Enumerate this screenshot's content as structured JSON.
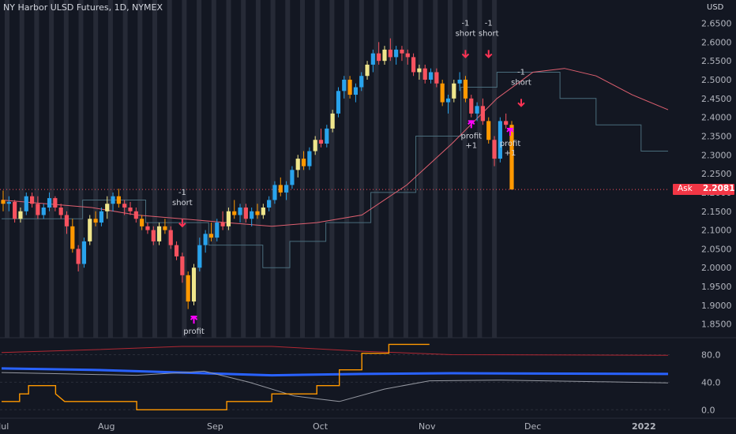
{
  "header": {
    "title": "NY Harbor ULSD Futures, 1D, NYMEX",
    "currency": "USD"
  },
  "ask": {
    "label": "Ask",
    "value": "2.2081"
  },
  "colors": {
    "background": "#131722",
    "bull": "#29a3ec",
    "bull_alt": "#f0e68c",
    "bear": "#f7525f",
    "bear_alt": "#ff9800",
    "ma": "#e06070",
    "signal_short": "#ff3355",
    "signal_profit": "#ff00ff",
    "session_band": "#2a2e39"
  },
  "chart_data": [
    {
      "type": "candlestick",
      "title": "NY Harbor ULSD Futures, 1D, NYMEX",
      "y_axis": {
        "ticks": [
          "2.6500",
          "2.6000",
          "2.5500",
          "2.5000",
          "2.4500",
          "2.4000",
          "2.3500",
          "2.3000",
          "2.2500",
          "2.2000",
          "2.1500",
          "2.1000",
          "2.0500",
          "2.0000",
          "1.9500",
          "1.9000",
          "1.8500"
        ],
        "range": [
          1.82,
          2.67
        ]
      },
      "x_axis": {
        "ticks": [
          "Jul",
          "Aug",
          "Sep",
          "Oct",
          "Nov",
          "Dec",
          "2022"
        ]
      },
      "series": [
        {
          "type": "line",
          "description": "moving average (pink)",
          "values": [
            [
              0,
              2.18
            ],
            [
              10,
              2.17
            ],
            [
              20,
              2.16
            ],
            [
              30,
              2.14
            ],
            [
              40,
              2.13
            ],
            [
              50,
              2.12
            ],
            [
              60,
              2.11
            ],
            [
              70,
              2.12
            ],
            [
              80,
              2.14
            ],
            [
              90,
              2.22
            ],
            [
              100,
              2.33
            ],
            [
              110,
              2.45
            ],
            [
              118,
              2.52
            ],
            [
              125,
              2.53
            ],
            [
              132,
              2.51
            ],
            [
              140,
              2.46
            ],
            [
              148,
              2.42
            ]
          ]
        },
        {
          "type": "line",
          "description": "trailing stop line (thin)",
          "values": [
            [
              0,
              2.13
            ],
            [
              18,
              2.13
            ],
            [
              18,
              2.18
            ],
            [
              32,
              2.18
            ],
            [
              32,
              2.12
            ],
            [
              46,
              2.12
            ],
            [
              46,
              2.06
            ],
            [
              58,
              2.06
            ],
            [
              58,
              2.0
            ],
            [
              64,
              2.0
            ],
            [
              64,
              2.07
            ],
            [
              72,
              2.07
            ],
            [
              72,
              2.12
            ],
            [
              82,
              2.12
            ],
            [
              82,
              2.2
            ],
            [
              92,
              2.2
            ],
            [
              92,
              2.35
            ],
            [
              102,
              2.35
            ],
            [
              102,
              2.48
            ],
            [
              110,
              2.48
            ],
            [
              110,
              2.52
            ],
            [
              124,
              2.52
            ],
            [
              124,
              2.45
            ],
            [
              132,
              2.45
            ],
            [
              132,
              2.38
            ],
            [
              142,
              2.38
            ],
            [
              142,
              2.31
            ],
            [
              148,
              2.31
            ]
          ]
        }
      ],
      "ohlc": [
        [
          0,
          2.18,
          2.205,
          2.15,
          2.17
        ],
        [
          1,
          2.17,
          2.19,
          2.15,
          2.175
        ],
        [
          2,
          2.175,
          2.18,
          2.12,
          2.13
        ],
        [
          3,
          2.13,
          2.16,
          2.12,
          2.15
        ],
        [
          4,
          2.15,
          2.2,
          2.14,
          2.19
        ],
        [
          5,
          2.19,
          2.2,
          2.16,
          2.17
        ],
        [
          6,
          2.17,
          2.19,
          2.13,
          2.14
        ],
        [
          7,
          2.14,
          2.17,
          2.13,
          2.16
        ],
        [
          8,
          2.16,
          2.2,
          2.15,
          2.185
        ],
        [
          9,
          2.185,
          2.19,
          2.15,
          2.16
        ],
        [
          10,
          2.16,
          2.17,
          2.13,
          2.14
        ],
        [
          11,
          2.14,
          2.15,
          2.09,
          2.11
        ],
        [
          12,
          2.11,
          2.13,
          2.04,
          2.05
        ],
        [
          13,
          2.05,
          2.06,
          1.99,
          2.01
        ],
        [
          14,
          2.01,
          2.08,
          2.0,
          2.07
        ],
        [
          15,
          2.07,
          2.14,
          2.06,
          2.13
        ],
        [
          16,
          2.13,
          2.15,
          2.11,
          2.12
        ],
        [
          17,
          2.12,
          2.16,
          2.11,
          2.15
        ],
        [
          18,
          2.15,
          2.19,
          2.13,
          2.17
        ],
        [
          19,
          2.17,
          2.2,
          2.15,
          2.19
        ],
        [
          20,
          2.19,
          2.21,
          2.16,
          2.17
        ],
        [
          21,
          2.17,
          2.18,
          2.14,
          2.16
        ],
        [
          22,
          2.16,
          2.175,
          2.14,
          2.15
        ],
        [
          23,
          2.15,
          2.16,
          2.12,
          2.13
        ],
        [
          24,
          2.13,
          2.14,
          2.1,
          2.11
        ],
        [
          25,
          2.11,
          2.12,
          2.09,
          2.1
        ],
        [
          26,
          2.1,
          2.11,
          2.06,
          2.07
        ],
        [
          27,
          2.07,
          2.12,
          2.06,
          2.11
        ],
        [
          28,
          2.11,
          2.13,
          2.09,
          2.1
        ],
        [
          29,
          2.1,
          2.11,
          2.05,
          2.06
        ],
        [
          30,
          2.06,
          2.07,
          2.02,
          2.03
        ],
        [
          31,
          2.03,
          2.04,
          1.96,
          1.98
        ],
        [
          32,
          1.98,
          1.99,
          1.89,
          1.91
        ],
        [
          33,
          1.91,
          2.01,
          1.9,
          2.0
        ],
        [
          34,
          2.0,
          2.08,
          1.99,
          2.06
        ],
        [
          35,
          2.06,
          2.1,
          2.04,
          2.09
        ],
        [
          36,
          2.09,
          2.12,
          2.07,
          2.08
        ],
        [
          37,
          2.08,
          2.13,
          2.07,
          2.12
        ],
        [
          38,
          2.12,
          2.15,
          2.1,
          2.11
        ],
        [
          39,
          2.11,
          2.16,
          2.1,
          2.15
        ],
        [
          40,
          2.15,
          2.18,
          2.13,
          2.14
        ],
        [
          41,
          2.14,
          2.17,
          2.12,
          2.16
        ],
        [
          42,
          2.16,
          2.17,
          2.12,
          2.13
        ],
        [
          43,
          2.13,
          2.16,
          2.11,
          2.15
        ],
        [
          44,
          2.15,
          2.17,
          2.13,
          2.14
        ],
        [
          45,
          2.14,
          2.17,
          2.13,
          2.16
        ],
        [
          46,
          2.16,
          2.19,
          2.15,
          2.18
        ],
        [
          47,
          2.18,
          2.23,
          2.17,
          2.22
        ],
        [
          48,
          2.22,
          2.24,
          2.19,
          2.2
        ],
        [
          49,
          2.2,
          2.23,
          2.18,
          2.22
        ],
        [
          50,
          2.22,
          2.27,
          2.21,
          2.26
        ],
        [
          51,
          2.26,
          2.3,
          2.24,
          2.29
        ],
        [
          52,
          2.29,
          2.31,
          2.26,
          2.27
        ],
        [
          53,
          2.27,
          2.32,
          2.26,
          2.31
        ],
        [
          54,
          2.31,
          2.35,
          2.3,
          2.34
        ],
        [
          55,
          2.34,
          2.37,
          2.32,
          2.33
        ],
        [
          56,
          2.33,
          2.38,
          2.32,
          2.37
        ],
        [
          57,
          2.37,
          2.42,
          2.36,
          2.41
        ],
        [
          58,
          2.41,
          2.48,
          2.4,
          2.47
        ],
        [
          59,
          2.47,
          2.51,
          2.45,
          2.5
        ],
        [
          60,
          2.5,
          2.51,
          2.45,
          2.46
        ],
        [
          61,
          2.46,
          2.49,
          2.44,
          2.48
        ],
        [
          62,
          2.48,
          2.52,
          2.47,
          2.51
        ],
        [
          63,
          2.51,
          2.55,
          2.5,
          2.54
        ],
        [
          64,
          2.54,
          2.58,
          2.52,
          2.57
        ],
        [
          65,
          2.57,
          2.6,
          2.54,
          2.55
        ],
        [
          66,
          2.55,
          2.59,
          2.54,
          2.58
        ],
        [
          67,
          2.58,
          2.61,
          2.55,
          2.56
        ],
        [
          68,
          2.56,
          2.59,
          2.54,
          2.58
        ],
        [
          69,
          2.58,
          2.59,
          2.55,
          2.57
        ],
        [
          70,
          2.57,
          2.58,
          2.54,
          2.56
        ],
        [
          71,
          2.56,
          2.57,
          2.51,
          2.52
        ],
        [
          72,
          2.52,
          2.54,
          2.5,
          2.53
        ],
        [
          73,
          2.53,
          2.54,
          2.49,
          2.5
        ],
        [
          74,
          2.5,
          2.53,
          2.49,
          2.52
        ],
        [
          75,
          2.52,
          2.53,
          2.48,
          2.49
        ],
        [
          76,
          2.49,
          2.5,
          2.43,
          2.44
        ],
        [
          77,
          2.44,
          2.46,
          2.41,
          2.45
        ],
        [
          78,
          2.45,
          2.5,
          2.44,
          2.49
        ],
        [
          79,
          2.49,
          2.52,
          2.47,
          2.5
        ],
        [
          80,
          2.5,
          2.51,
          2.44,
          2.45
        ],
        [
          81,
          2.45,
          2.46,
          2.4,
          2.41
        ],
        [
          82,
          2.41,
          2.44,
          2.39,
          2.43
        ],
        [
          83,
          2.43,
          2.45,
          2.38,
          2.39
        ],
        [
          84,
          2.39,
          2.4,
          2.33,
          2.34
        ],
        [
          85,
          2.34,
          2.35,
          2.27,
          2.29
        ],
        [
          86,
          2.29,
          2.4,
          2.28,
          2.39
        ],
        [
          87,
          2.39,
          2.41,
          2.37,
          2.38
        ],
        [
          88,
          2.38,
          2.39,
          2.208,
          2.208
        ]
      ],
      "signals": [
        {
          "kind": "short",
          "text": [
            "-1",
            "short"
          ]
        },
        {
          "kind": "profit",
          "text": [
            "profit"
          ]
        },
        {
          "kind": "short",
          "text": [
            "-1",
            "short"
          ]
        },
        {
          "kind": "short",
          "text": [
            "-1",
            "short"
          ]
        },
        {
          "kind": "profit",
          "text": [
            "profit",
            "+1"
          ]
        },
        {
          "kind": "profit",
          "text": [
            "profit",
            "+1"
          ]
        },
        {
          "kind": "short",
          "text": [
            "-1",
            "short"
          ]
        }
      ]
    },
    {
      "type": "line",
      "title": "",
      "y_axis": {
        "ticks": [
          "80.0",
          "40.0",
          "0.0"
        ],
        "range": [
          -10,
          100
        ]
      },
      "series": [
        {
          "color": "#2962ff",
          "values": [
            [
              0,
              60
            ],
            [
              20,
              58
            ],
            [
              40,
              54
            ],
            [
              60,
              50
            ],
            [
              80,
              52
            ],
            [
              100,
              53
            ],
            [
              148,
              52
            ]
          ]
        },
        {
          "color": "#b22833",
          "values": [
            [
              0,
              83
            ],
            [
              20,
              87
            ],
            [
              40,
              92
            ],
            [
              60,
              92
            ],
            [
              80,
              85
            ],
            [
              100,
              80
            ],
            [
              148,
              79
            ]
          ]
        },
        {
          "color": "#9598a1",
          "values": [
            [
              0,
              54
            ],
            [
              15,
              52
            ],
            [
              30,
              50
            ],
            [
              45,
              56
            ],
            [
              55,
              40
            ],
            [
              65,
              20
            ],
            [
              75,
              12
            ],
            [
              85,
              30
            ],
            [
              95,
              42
            ],
            [
              110,
              43
            ],
            [
              130,
              41
            ],
            [
              148,
              39
            ]
          ]
        },
        {
          "color": "#ff9800",
          "values": [
            [
              0,
              12
            ],
            [
              4,
              12
            ],
            [
              4,
              23
            ],
            [
              6,
              23
            ],
            [
              6,
              35
            ],
            [
              12,
              35
            ],
            [
              12,
              23
            ],
            [
              14,
              12
            ],
            [
              30,
              12
            ],
            [
              30,
              0
            ],
            [
              50,
              0
            ],
            [
              50,
              12
            ],
            [
              60,
              12
            ],
            [
              60,
              23
            ],
            [
              70,
              23
            ],
            [
              70,
              35
            ],
            [
              75,
              35
            ],
            [
              75,
              58
            ],
            [
              80,
              58
            ],
            [
              80,
              82
            ],
            [
              86,
              82
            ],
            [
              86,
              95
            ],
            [
              95,
              95
            ]
          ]
        }
      ]
    }
  ]
}
